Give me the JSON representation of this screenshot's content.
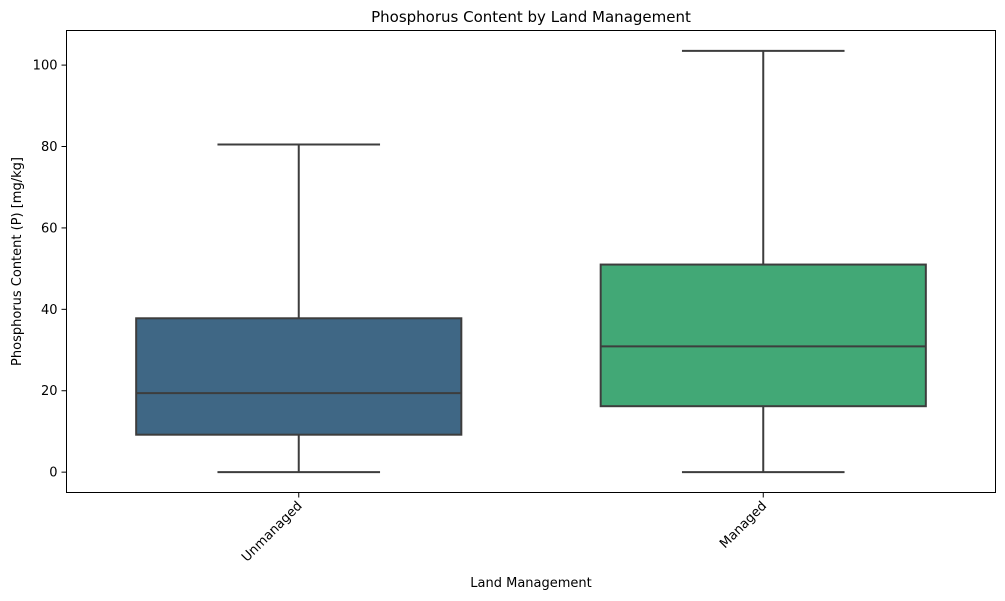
{
  "chart_data": {
    "type": "box",
    "title": "Phosphorus Content by Land Management",
    "xlabel": "Land Management",
    "ylabel": "Phosphorus Content (P) [mg/kg]",
    "categories": [
      "Unmanaged",
      "Managed"
    ],
    "boxes": [
      {
        "category": "Unmanaged",
        "min": 0,
        "q1": 9.2,
        "median": 19.4,
        "q3": 37.8,
        "max": 80.5,
        "color": "#3f6785"
      },
      {
        "category": "Managed",
        "min": 0,
        "q1": 16.2,
        "median": 30.9,
        "q3": 51.0,
        "max": 103.5,
        "color": "#42a876"
      }
    ],
    "ylim": [
      -5,
      108.5
    ],
    "yticks": [
      0,
      20,
      40,
      60,
      80,
      100
    ],
    "grid": false,
    "legend": "none"
  }
}
